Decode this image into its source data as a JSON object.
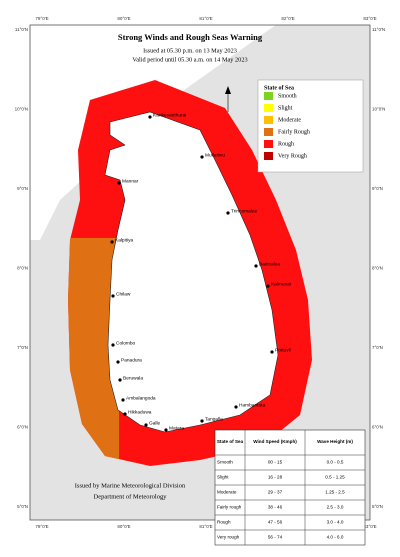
{
  "header": {
    "title": "Strong Winds and Rough Seas Warning",
    "issued": "Issued at 05.30 p.m. on 13 May 2023",
    "valid": "Valid period until 05.30 a.m. on 14 May 2023"
  },
  "axes": {
    "longitudes": [
      "79°0'E",
      "80°0'E",
      "81°0'E",
      "82°0'E",
      "83°0'E"
    ],
    "latitudes": [
      "11°0'N",
      "10°0'N",
      "9°0'N",
      "8°0'N",
      "7°0'N",
      "6°0'N",
      "5°0'N"
    ]
  },
  "legend": {
    "title": "State of Sea",
    "items": [
      {
        "label": "Smooth",
        "color": "#7ed321"
      },
      {
        "label": "Slight",
        "color": "#ffff00"
      },
      {
        "label": "Moderate",
        "color": "#ffc000"
      },
      {
        "label": "Fairly Rough",
        "color": "#e07014"
      },
      {
        "label": "Rough",
        "color": "#ff1010"
      },
      {
        "label": "Very Rough",
        "color": "#c00000"
      }
    ]
  },
  "map": {
    "cities": [
      "Kankesanthurai",
      "Mullaitivu",
      "Trincomalee",
      "Mannar",
      "Kalpitiya",
      "Chilaw",
      "Colombo",
      "Panadura",
      "Beruwala",
      "Ambalangoda",
      "Hikkaduwa",
      "Galle",
      "Matara",
      "Tangalle",
      "Hambantota",
      "Pottuvil",
      "Kalmunai",
      "Batticaloa"
    ]
  },
  "table": {
    "header": [
      "State of Sea",
      "Wind Speed (Kmph)",
      "Wave Height (m)"
    ],
    "rows": [
      [
        "Smooth",
        "00 - 15",
        "0.0 - 0.5"
      ],
      [
        "Slight",
        "16 - 28",
        "0.5 - 1.25"
      ],
      [
        "Moderate",
        "29 - 37",
        "1.25 - 2.5"
      ],
      [
        "Fairly rough",
        "38 - 46",
        "2.5 - 3.0"
      ],
      [
        "Rough",
        "47 - 56",
        "3.0 - 4.0"
      ],
      [
        "Very rough",
        "56 - 74",
        "4.0 - 6.0"
      ]
    ]
  },
  "footer": {
    "line1": "Issued by Marine Meteorological Division",
    "line2": "Department of Meteorology"
  }
}
